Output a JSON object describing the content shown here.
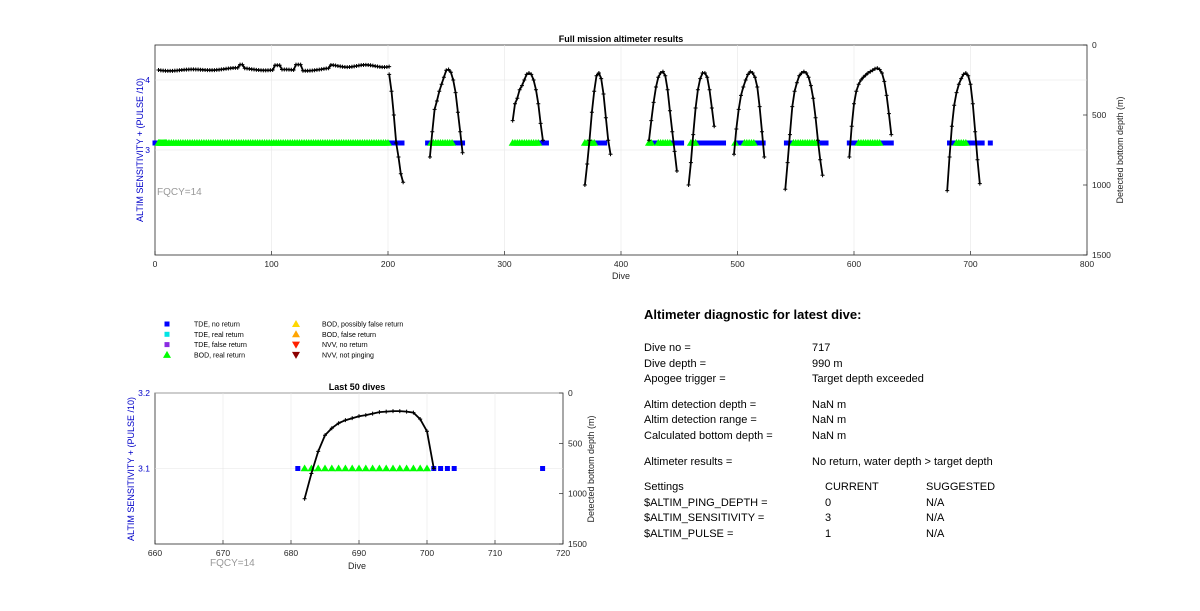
{
  "colors": {
    "tde_no_return": "#0000ff",
    "tde_real_return": "#00e5e5",
    "tde_false_return": "#8a2be2",
    "bod_real_return": "#00ff00",
    "bod_possibly_false": "#ffd700",
    "bod_false": "#ffa500",
    "nvv_no_return": "#ff2000",
    "nvv_not_pinging": "#8b0000",
    "depth_line": "#000000",
    "left_axis_label": "#0000c8"
  },
  "chart_data": [
    {
      "type": "scatter",
      "title": "Full mission altimeter results",
      "xlabel": "Dive",
      "ylabel": "ALTIM SENSITIVITY + (PULSE /10)",
      "ylabel_right": "Detected bottom depth (m)",
      "xlim": [
        0,
        800
      ],
      "ylim": [
        1.5,
        4.5
      ],
      "ylim_right": [
        1500,
        0
      ],
      "xticks": [
        "0",
        "100",
        "200",
        "300",
        "400",
        "500",
        "600",
        "700",
        "800"
      ],
      "yticks": [
        "3",
        "4"
      ],
      "yticks_right": [
        "0",
        "500",
        "1000",
        "1500"
      ],
      "grid": true,
      "annotation": "FQCY=14",
      "sensitivity_value": 3.1,
      "flat_depth_segment": {
        "x": [
          3,
          201
        ],
        "y": [
          160,
          190
        ],
        "bumps": [
          [
            74,
            140
          ],
          [
            105,
            145
          ],
          [
            123,
            140
          ],
          [
            197,
            125
          ]
        ]
      },
      "depth_segments": [
        [
          [
            201,
            210
          ],
          [
            203,
            330
          ],
          [
            205,
            500
          ],
          [
            207,
            700
          ],
          [
            209,
            800
          ],
          [
            211,
            920
          ],
          [
            213,
            980
          ]
        ],
        [
          [
            236,
            800
          ],
          [
            238,
            620
          ],
          [
            240,
            460
          ],
          [
            242,
            400
          ],
          [
            244,
            330
          ],
          [
            246,
            280
          ],
          [
            248,
            230
          ],
          [
            250,
            180
          ],
          [
            252,
            175
          ],
          [
            254,
            195
          ],
          [
            256,
            250
          ],
          [
            258,
            340
          ],
          [
            260,
            480
          ],
          [
            262,
            620
          ],
          [
            264,
            770
          ]
        ],
        [
          [
            307,
            540
          ],
          [
            309,
            420
          ],
          [
            311,
            380
          ],
          [
            313,
            320
          ],
          [
            315,
            290
          ],
          [
            317,
            250
          ],
          [
            319,
            210
          ],
          [
            321,
            200
          ],
          [
            323,
            210
          ],
          [
            325,
            250
          ],
          [
            327,
            320
          ],
          [
            329,
            420
          ],
          [
            331,
            560
          ],
          [
            333,
            680
          ]
        ],
        [
          [
            369,
            1000
          ],
          [
            371,
            850
          ],
          [
            373,
            680
          ],
          [
            375,
            480
          ],
          [
            377,
            330
          ],
          [
            379,
            220
          ],
          [
            381,
            200
          ],
          [
            383,
            240
          ],
          [
            385,
            350
          ],
          [
            387,
            520
          ],
          [
            389,
            680
          ],
          [
            391,
            780
          ]
        ],
        [
          [
            424,
            680
          ],
          [
            426,
            540
          ],
          [
            428,
            410
          ],
          [
            430,
            300
          ],
          [
            432,
            230
          ],
          [
            434,
            200
          ],
          [
            436,
            190
          ],
          [
            438,
            220
          ],
          [
            440,
            320
          ],
          [
            442,
            470
          ],
          [
            444,
            620
          ],
          [
            446,
            760
          ],
          [
            448,
            900
          ]
        ],
        [
          [
            458,
            1000
          ],
          [
            460,
            840
          ],
          [
            462,
            640
          ],
          [
            464,
            450
          ],
          [
            466,
            320
          ],
          [
            468,
            240
          ],
          [
            470,
            200
          ],
          [
            472,
            200
          ],
          [
            474,
            230
          ],
          [
            476,
            320
          ],
          [
            478,
            450
          ],
          [
            480,
            580
          ]
        ],
        [
          [
            497,
            780
          ],
          [
            499,
            600
          ],
          [
            501,
            460
          ],
          [
            503,
            360
          ],
          [
            505,
            300
          ],
          [
            507,
            250
          ],
          [
            509,
            210
          ],
          [
            511,
            190
          ],
          [
            513,
            200
          ],
          [
            515,
            230
          ],
          [
            517,
            300
          ],
          [
            519,
            440
          ],
          [
            521,
            620
          ],
          [
            523,
            800
          ]
        ],
        [
          [
            541,
            1030
          ],
          [
            543,
            840
          ],
          [
            545,
            640
          ],
          [
            547,
            440
          ],
          [
            549,
            330
          ],
          [
            551,
            270
          ],
          [
            553,
            220
          ],
          [
            555,
            200
          ],
          [
            557,
            190
          ],
          [
            559,
            200
          ],
          [
            561,
            230
          ],
          [
            563,
            290
          ],
          [
            565,
            380
          ],
          [
            567,
            520
          ],
          [
            569,
            680
          ],
          [
            571,
            820
          ],
          [
            573,
            930
          ]
        ],
        [
          [
            596,
            800
          ],
          [
            598,
            580
          ],
          [
            600,
            420
          ],
          [
            602,
            330
          ],
          [
            604,
            280
          ],
          [
            606,
            250
          ],
          [
            608,
            230
          ],
          [
            610,
            215
          ],
          [
            612,
            200
          ],
          [
            614,
            190
          ],
          [
            616,
            180
          ],
          [
            618,
            170
          ],
          [
            620,
            165
          ],
          [
            622,
            175
          ],
          [
            624,
            200
          ],
          [
            626,
            260
          ],
          [
            628,
            360
          ],
          [
            630,
            490
          ],
          [
            632,
            640
          ]
        ],
        [
          [
            680,
            1040
          ],
          [
            682,
            800
          ],
          [
            684,
            580
          ],
          [
            686,
            430
          ],
          [
            688,
            340
          ],
          [
            690,
            280
          ],
          [
            692,
            240
          ],
          [
            694,
            210
          ],
          [
            696,
            200
          ],
          [
            698,
            220
          ],
          [
            700,
            280
          ],
          [
            702,
            420
          ],
          [
            704,
            620
          ],
          [
            706,
            820
          ],
          [
            708,
            990
          ]
        ]
      ],
      "tde_no_return_x": [
        0,
        1,
        2,
        201,
        202,
        203,
        204,
        205,
        206,
        207,
        208,
        209,
        210,
        211,
        212,
        234,
        235,
        236,
        256,
        258,
        260,
        262,
        264,
        330,
        332,
        334,
        336,
        376,
        378,
        380,
        382,
        384,
        386,
        428,
        430,
        444,
        446,
        448,
        450,
        452,
        466,
        468,
        470,
        472,
        474,
        476,
        478,
        480,
        482,
        484,
        486,
        488,
        500,
        502,
        504,
        516,
        518,
        520,
        522,
        542,
        544,
        546,
        570,
        572,
        574,
        576,
        596,
        598,
        600,
        602,
        624,
        626,
        628,
        630,
        632,
        682,
        684,
        686,
        698,
        700,
        702,
        704,
        706,
        708,
        710,
        717
      ],
      "bod_real_return_x": [
        3,
        4,
        5,
        6,
        7,
        8,
        9,
        10,
        12,
        14,
        16,
        18,
        20,
        22,
        24,
        26,
        28,
        30,
        32,
        34,
        36,
        38,
        40,
        42,
        44,
        46,
        48,
        50,
        52,
        54,
        56,
        58,
        60,
        62,
        64,
        66,
        68,
        70,
        72,
        74,
        76,
        78,
        80,
        82,
        84,
        86,
        88,
        90,
        92,
        94,
        96,
        98,
        100,
        102,
        104,
        106,
        108,
        110,
        112,
        114,
        116,
        118,
        120,
        122,
        124,
        126,
        128,
        130,
        132,
        134,
        136,
        138,
        140,
        142,
        144,
        146,
        148,
        150,
        152,
        154,
        156,
        158,
        160,
        162,
        164,
        166,
        168,
        170,
        172,
        174,
        176,
        178,
        180,
        182,
        184,
        186,
        188,
        190,
        192,
        194,
        196,
        198,
        200,
        237,
        239,
        241,
        243,
        245,
        247,
        249,
        251,
        253,
        255,
        307,
        309,
        311,
        313,
        315,
        317,
        319,
        321,
        323,
        325,
        327,
        329,
        369,
        371,
        373,
        375,
        377,
        424,
        426,
        432,
        434,
        436,
        438,
        440,
        442,
        460,
        462,
        464,
        498,
        506,
        508,
        510,
        512,
        514,
        548,
        550,
        552,
        554,
        556,
        558,
        560,
        562,
        564,
        566,
        568,
        604,
        606,
        608,
        610,
        612,
        614,
        616,
        618,
        620,
        622,
        688,
        690,
        692,
        694,
        696
      ]
    },
    {
      "type": "scatter",
      "title": "Last 50 dives",
      "xlabel": "Dive",
      "ylabel": "ALTIM SENSITIVITY + (PULSE /10)",
      "ylabel_right": "Detected bottom depth (m)",
      "xlim": [
        660,
        720
      ],
      "ylim": [
        3.0,
        3.2
      ],
      "ylim_right": [
        1500,
        0
      ],
      "xticks": [
        "660",
        "670",
        "680",
        "690",
        "700",
        "710",
        "720"
      ],
      "yticks": [
        "3.1",
        "3.2"
      ],
      "yticks_right": [
        "0",
        "500",
        "1000",
        "1500"
      ],
      "grid": true,
      "annotation": "FQCY=14",
      "sensitivity_value": 3.1,
      "depth_line": [
        [
          682,
          1050
        ],
        [
          683,
          800
        ],
        [
          684,
          580
        ],
        [
          685,
          420
        ],
        [
          686,
          350
        ],
        [
          687,
          300
        ],
        [
          688,
          270
        ],
        [
          689,
          250
        ],
        [
          690,
          230
        ],
        [
          691,
          220
        ],
        [
          692,
          205
        ],
        [
          693,
          190
        ],
        [
          694,
          185
        ],
        [
          695,
          180
        ],
        [
          696,
          180
        ],
        [
          697,
          185
        ],
        [
          698,
          195
        ],
        [
          699,
          260
        ],
        [
          700,
          380
        ],
        [
          701,
          750
        ]
      ],
      "tde_no_return_x": [
        681,
        701,
        702,
        703,
        704,
        717
      ],
      "bod_real_return_x": [
        682,
        683,
        684,
        685,
        686,
        687,
        688,
        689,
        690,
        691,
        692,
        693,
        694,
        695,
        696,
        697,
        698,
        699,
        700
      ]
    }
  ],
  "legend": {
    "items": [
      {
        "label": "TDE, no return",
        "marker": "square",
        "color_key": "tde_no_return"
      },
      {
        "label": "TDE, real return",
        "marker": "square",
        "color_key": "tde_real_return"
      },
      {
        "label": "TDE, false return",
        "marker": "square",
        "color_key": "tde_false_return"
      },
      {
        "label": "BOD, real return",
        "marker": "triangle-up",
        "color_key": "bod_real_return"
      },
      {
        "label": "BOD, possibly false return",
        "marker": "triangle-up",
        "color_key": "bod_possibly_false"
      },
      {
        "label": "BOD, false return",
        "marker": "triangle-up",
        "color_key": "bod_false"
      },
      {
        "label": "NVV, no return",
        "marker": "triangle-down",
        "color_key": "nvv_no_return"
      },
      {
        "label": "NVV, not pinging",
        "marker": "triangle-down",
        "color_key": "nvv_not_pinging"
      }
    ]
  },
  "diagnostic": {
    "heading": "Altimeter diagnostic for latest dive:",
    "dive_no_label": "Dive no =",
    "dive_no_value": "717",
    "dive_depth_label": "Dive depth =",
    "dive_depth_value": "990 m",
    "apogee_label": "Apogee trigger =",
    "apogee_value": "Target depth exceeded",
    "det_depth_label": "Altim detection depth =",
    "det_depth_value": "NaN m",
    "det_range_label": "Altim detection range =",
    "det_range_value": "NaN m",
    "calc_depth_label": "Calculated bottom depth =",
    "calc_depth_value": "NaN m",
    "results_label": "Altimeter results =",
    "results_value": "No return, water depth > target depth",
    "settings_label": "Settings",
    "current_label": "CURRENT",
    "suggested_label": "SUGGESTED",
    "ping_depth_label": "$ALTIM_PING_DEPTH =",
    "ping_depth_current": "0",
    "ping_depth_suggested": "N/A",
    "sensitivity_label": "$ALTIM_SENSITIVITY =",
    "sensitivity_current": "3",
    "sensitivity_suggested": "N/A",
    "pulse_label": "$ALTIM_PULSE =",
    "pulse_current": "1",
    "pulse_suggested": "N/A"
  }
}
